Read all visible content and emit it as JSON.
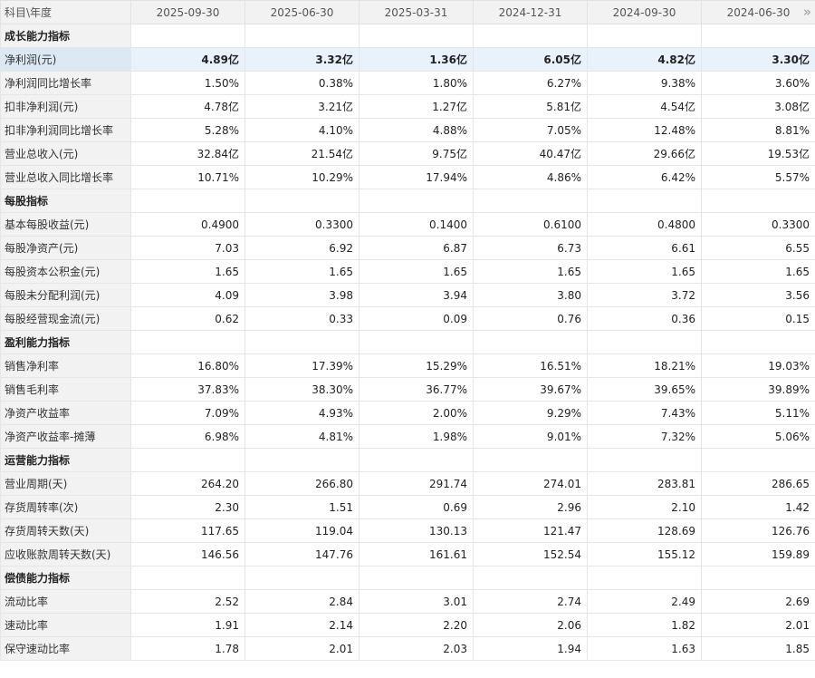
{
  "header": {
    "corner_label": "科目\\年度",
    "periods": [
      "2025-09-30",
      "2025-06-30",
      "2025-03-31",
      "2024-12-31",
      "2024-09-30",
      "2024-06-30"
    ],
    "next_icon": "double-chevron-right-icon"
  },
  "rows": [
    {
      "type": "section",
      "label": "成长能力指标"
    },
    {
      "type": "data",
      "label": "净利润(元)",
      "highlight": true,
      "values": [
        "4.89亿",
        "3.32亿",
        "1.36亿",
        "6.05亿",
        "4.82亿",
        "3.30亿"
      ]
    },
    {
      "type": "data",
      "label": "净利润同比增长率",
      "values": [
        "1.50%",
        "0.38%",
        "1.80%",
        "6.27%",
        "9.38%",
        "3.60%"
      ]
    },
    {
      "type": "data",
      "label": "扣非净利润(元)",
      "values": [
        "4.78亿",
        "3.21亿",
        "1.27亿",
        "5.81亿",
        "4.54亿",
        "3.08亿"
      ]
    },
    {
      "type": "data",
      "label": "扣非净利润同比增长率",
      "values": [
        "5.28%",
        "4.10%",
        "4.88%",
        "7.05%",
        "12.48%",
        "8.81%"
      ]
    },
    {
      "type": "data",
      "label": "营业总收入(元)",
      "values": [
        "32.84亿",
        "21.54亿",
        "9.75亿",
        "40.47亿",
        "29.66亿",
        "19.53亿"
      ]
    },
    {
      "type": "data",
      "label": "营业总收入同比增长率",
      "values": [
        "10.71%",
        "10.29%",
        "17.94%",
        "4.86%",
        "6.42%",
        "5.57%"
      ]
    },
    {
      "type": "section",
      "label": "每股指标"
    },
    {
      "type": "data",
      "label": "基本每股收益(元)",
      "values": [
        "0.4900",
        "0.3300",
        "0.1400",
        "0.6100",
        "0.4800",
        "0.3300"
      ]
    },
    {
      "type": "data",
      "label": "每股净资产(元)",
      "values": [
        "7.03",
        "6.92",
        "6.87",
        "6.73",
        "6.61",
        "6.55"
      ]
    },
    {
      "type": "data",
      "label": "每股资本公积金(元)",
      "values": [
        "1.65",
        "1.65",
        "1.65",
        "1.65",
        "1.65",
        "1.65"
      ]
    },
    {
      "type": "data",
      "label": "每股未分配利润(元)",
      "values": [
        "4.09",
        "3.98",
        "3.94",
        "3.80",
        "3.72",
        "3.56"
      ]
    },
    {
      "type": "data",
      "label": "每股经营现金流(元)",
      "values": [
        "0.62",
        "0.33",
        "0.09",
        "0.76",
        "0.36",
        "0.15"
      ]
    },
    {
      "type": "section",
      "label": "盈利能力指标"
    },
    {
      "type": "data",
      "label": "销售净利率",
      "values": [
        "16.80%",
        "17.39%",
        "15.29%",
        "16.51%",
        "18.21%",
        "19.03%"
      ]
    },
    {
      "type": "data",
      "label": "销售毛利率",
      "values": [
        "37.83%",
        "38.30%",
        "36.77%",
        "39.67%",
        "39.65%",
        "39.89%"
      ]
    },
    {
      "type": "data",
      "label": "净资产收益率",
      "values": [
        "7.09%",
        "4.93%",
        "2.00%",
        "9.29%",
        "7.43%",
        "5.11%"
      ]
    },
    {
      "type": "data",
      "label": "净资产收益率-摊薄",
      "values": [
        "6.98%",
        "4.81%",
        "1.98%",
        "9.01%",
        "7.32%",
        "5.06%"
      ]
    },
    {
      "type": "section",
      "label": "运营能力指标"
    },
    {
      "type": "data",
      "label": "营业周期(天)",
      "values": [
        "264.20",
        "266.80",
        "291.74",
        "274.01",
        "283.81",
        "286.65"
      ]
    },
    {
      "type": "data",
      "label": "存货周转率(次)",
      "values": [
        "2.30",
        "1.51",
        "0.69",
        "2.96",
        "2.10",
        "1.42"
      ]
    },
    {
      "type": "data",
      "label": "存货周转天数(天)",
      "values": [
        "117.65",
        "119.04",
        "130.13",
        "121.47",
        "128.69",
        "126.76"
      ]
    },
    {
      "type": "data",
      "label": "应收账款周转天数(天)",
      "values": [
        "146.56",
        "147.76",
        "161.61",
        "152.54",
        "155.12",
        "159.89"
      ]
    },
    {
      "type": "section",
      "label": "偿债能力指标"
    },
    {
      "type": "data",
      "label": "流动比率",
      "values": [
        "2.52",
        "2.84",
        "3.01",
        "2.74",
        "2.49",
        "2.69"
      ]
    },
    {
      "type": "data",
      "label": "速动比率",
      "values": [
        "1.91",
        "2.14",
        "2.20",
        "2.06",
        "1.82",
        "2.01"
      ]
    },
    {
      "type": "data",
      "label": "保守速动比率",
      "values": [
        "1.78",
        "2.01",
        "2.03",
        "1.94",
        "1.63",
        "1.85"
      ]
    }
  ]
}
